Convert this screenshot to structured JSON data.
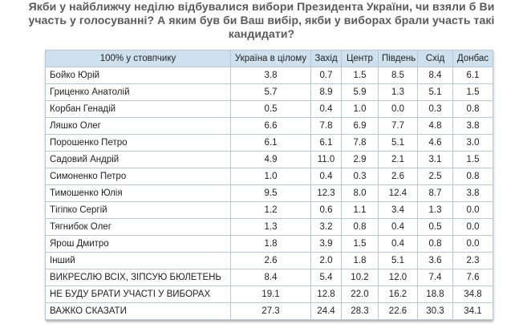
{
  "title": {
    "line1": "Якби у найближчу неділю відбувалися вибори Президента України, чи взяли б Ви",
    "line2": "участь у голосуванні? А яким був би Ваш вибір, якби у виборах брали участь такі",
    "line3": "кандидати?"
  },
  "table": {
    "headers": [
      "100% у стовпчику",
      "Україна в цілому",
      "Захід",
      "Центр",
      "Південь",
      "Схід",
      "Донбас"
    ],
    "rows": [
      [
        "Бойко Юрій",
        "3.8",
        "0.7",
        "1.5",
        "8.5",
        "8.4",
        "6.1"
      ],
      [
        "Гриценко Анатолій",
        "5.7",
        "8.9",
        "5.9",
        "1.3",
        "5.1",
        "1.5"
      ],
      [
        "Корбан Генадій",
        "0.5",
        "0.4",
        "1.0",
        "0.0",
        "0.3",
        "0.8"
      ],
      [
        "Ляшко Олег",
        "6.6",
        "7.8",
        "6.9",
        "7.7",
        "4.8",
        "3.8"
      ],
      [
        "Порошенко Петро",
        "6.1",
        "6.1",
        "7.8",
        "5.1",
        "4.6",
        "3.0"
      ],
      [
        "Садовий Андрій",
        "4.9",
        "11.0",
        "2.9",
        "2.1",
        "3.1",
        "1.5"
      ],
      [
        "Симоненко Петро",
        "1.0",
        "0.4",
        "0.3",
        "2.6",
        "2.5",
        "0.8"
      ],
      [
        "Тимошенко Юлія",
        "9.5",
        "12.3",
        "8.0",
        "12.4",
        "8.7",
        "3.8"
      ],
      [
        "Тігіпко Сергій",
        "1.2",
        "0.6",
        "1.1",
        "3.4",
        "1.3",
        "0.0"
      ],
      [
        "Тягнибок Олег",
        "1.3",
        "3.2",
        "0.8",
        "0.4",
        "0.5",
        "0.0"
      ],
      [
        "Ярош Дмитро",
        "1.8",
        "3.9",
        "1.5",
        "0.4",
        "0.8",
        "0.0"
      ],
      [
        "Інший",
        "2.6",
        "2.0",
        "1.8",
        "5.1",
        "3.6",
        "2.3"
      ],
      [
        "ВИКРЕСЛЮ ВСІХ, ЗІПСУЮ БЮЛЕТЕНЬ",
        "8.4",
        "5.4",
        "10.2",
        "12.0",
        "7.4",
        "7.6"
      ],
      [
        "НЕ БУДУ БРАТИ УЧАСТІ У ВИБОРАХ",
        "19.1",
        "12.8",
        "22.0",
        "16.2",
        "18.8",
        "34.8"
      ],
      [
        "ВАЖКО СКАЗАТИ",
        "27.3",
        "24.4",
        "28.3",
        "22.6",
        "30.3",
        "34.1"
      ]
    ]
  },
  "colors": {
    "header_bg": "#cfe0ee",
    "border": "#b9c7d4",
    "title_text": "#5a5a5a"
  }
}
